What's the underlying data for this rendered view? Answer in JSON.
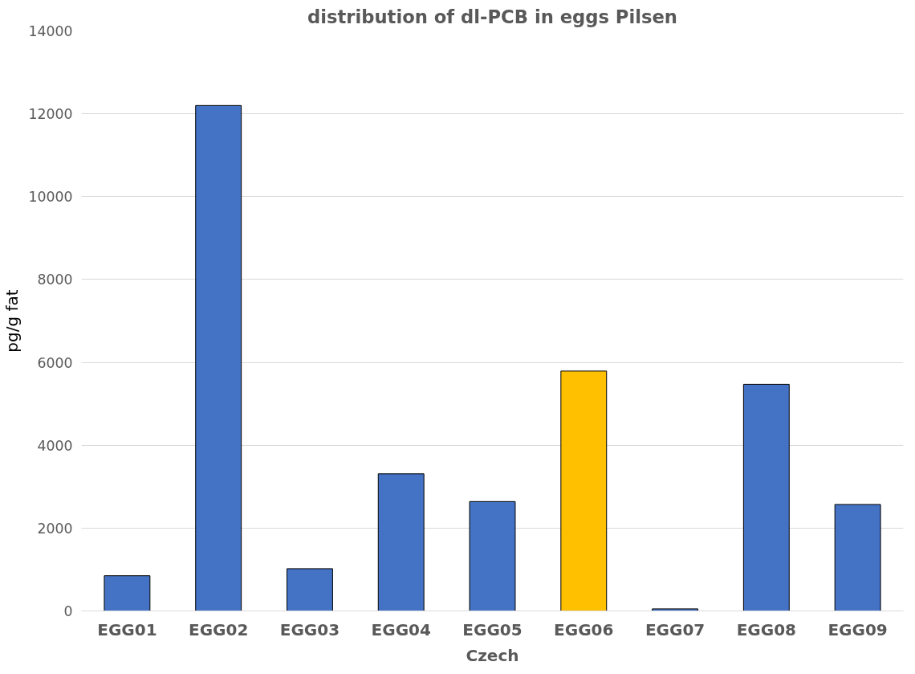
{
  "chart_data": {
    "type": "bar",
    "title": "distribution of dl-PCB in eggs Pilsen",
    "xlabel": "Czech",
    "ylabel": "pg/g fat",
    "categories": [
      "EGG01",
      "EGG02",
      "EGG03",
      "EGG04",
      "EGG05",
      "EGG06",
      "EGG07",
      "EGG08",
      "EGG09"
    ],
    "values": [
      850,
      12200,
      1020,
      3310,
      2640,
      5790,
      50,
      5470,
      2570
    ],
    "colors": [
      "#4472c4",
      "#4472c4",
      "#4472c4",
      "#4472c4",
      "#4472c4",
      "#ffc000",
      "#4472c4",
      "#4472c4",
      "#4472c4"
    ],
    "ylim": [
      0,
      14000
    ],
    "yticks": [
      0,
      2000,
      4000,
      6000,
      8000,
      10000,
      12000,
      14000
    ],
    "grid": "y"
  }
}
